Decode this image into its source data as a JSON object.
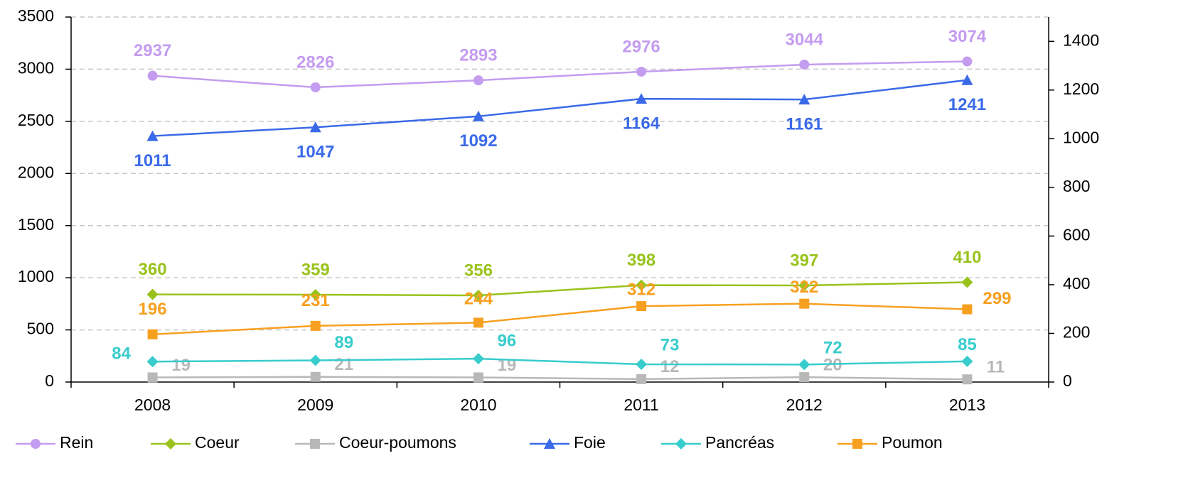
{
  "chart_data": {
    "type": "line",
    "categories": [
      "2008",
      "2009",
      "2010",
      "2011",
      "2012",
      "2013"
    ],
    "series": [
      {
        "name": "Rein",
        "color": "#c49cf0",
        "marker": "circle",
        "values": [
          2937,
          2826,
          2893,
          2976,
          3044,
          3074
        ]
      },
      {
        "name": "Coeur",
        "color": "#99c31c",
        "marker": "diamond",
        "axis": "y2",
        "values": [
          360,
          359,
          356,
          398,
          397,
          410
        ]
      },
      {
        "name": "Coeur-poumons",
        "color": "#b8b8b8",
        "marker": "square",
        "axis": "y2",
        "values": [
          19,
          21,
          19,
          12,
          20,
          11
        ]
      },
      {
        "name": "Foie",
        "color": "#3a6ae8",
        "marker": "triangle",
        "axis": "y2",
        "values": [
          1011,
          1047,
          1092,
          1164,
          1161,
          1241
        ]
      },
      {
        "name": "Pancréas",
        "color": "#38cccc",
        "marker": "diamond",
        "axis": "y2",
        "values": [
          84,
          89,
          96,
          73,
          72,
          85
        ]
      },
      {
        "name": "Poumon",
        "color": "#f7a020",
        "marker": "square",
        "axis": "y2",
        "values": [
          196,
          231,
          244,
          312,
          322,
          299
        ]
      }
    ],
    "ylim": [
      0,
      3500
    ],
    "yticks": [
      0,
      500,
      1000,
      1500,
      2000,
      2500,
      3000,
      3500
    ],
    "y2lim": [
      0,
      1500
    ],
    "y2ticks": [
      0,
      200,
      400,
      600,
      800,
      1000,
      1200,
      1400
    ],
    "grid": true,
    "legend": "bottom"
  }
}
